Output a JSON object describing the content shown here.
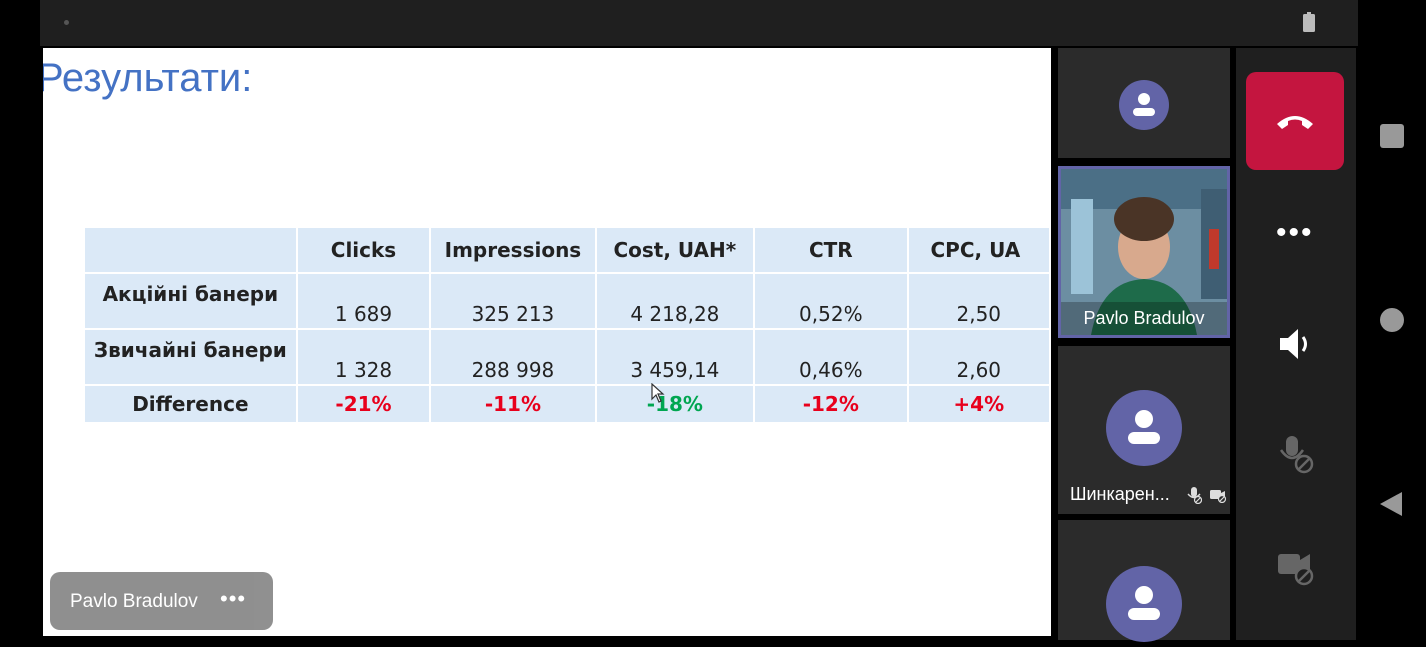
{
  "slide": {
    "title": "Результати:",
    "table": {
      "headers": [
        "",
        "Clicks",
        "Impressions",
        "Cost, UAH*",
        "CTR",
        "CPC, UA"
      ],
      "rows": [
        {
          "label": "Акційні банери",
          "values": [
            "1 689",
            "325 213",
            "4 218,28",
            "0,52%",
            "2,50"
          ]
        },
        {
          "label": "Звичайні банери",
          "values": [
            "1 328",
            "288 998",
            "3 459,14",
            "0,46%",
            "2,60"
          ]
        },
        {
          "label": "Difference",
          "values": [
            "-21%",
            "-11%",
            "-18%",
            "-12%",
            "+4%"
          ]
        }
      ]
    }
  },
  "presenter_pill": {
    "name": "Pavlo Bradulov",
    "more": "•••"
  },
  "participants": {
    "video_name": "Pavlo Bradulov",
    "tile3_name": "Шинкарен..."
  },
  "controls": {
    "more": "•••"
  },
  "colors": {
    "accent": "#6264a7",
    "hangup": "#c4153f",
    "negative": "#e8001c",
    "positive": "#00a651"
  },
  "icons": [
    "battery-icon",
    "person-icon",
    "hang-up-icon",
    "more-icon",
    "speaker-icon",
    "mic-off-icon",
    "camera-off-icon",
    "stop-icon",
    "home-icon",
    "back-icon",
    "cursor-icon"
  ]
}
